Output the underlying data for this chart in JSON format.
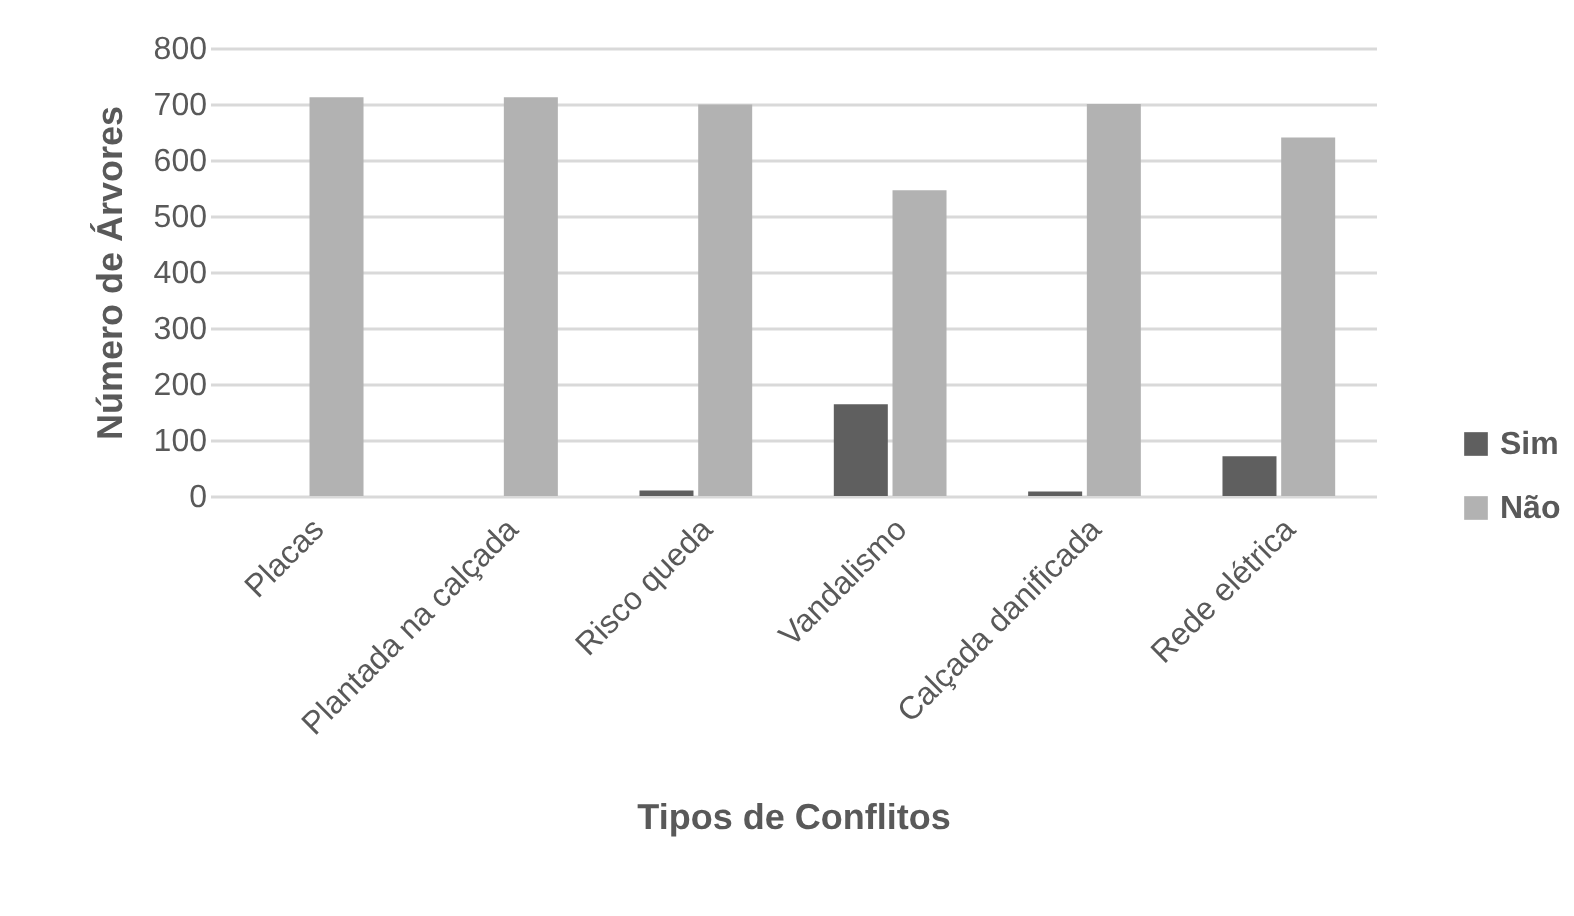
{
  "chart_data": {
    "type": "bar",
    "xlabel": "Tipos de Conflitos",
    "ylabel": "Número de Árvores",
    "categories": [
      "Placas",
      "Plantada na calçada",
      "Risco queda",
      "Vandalismo",
      "Calçada danificada",
      "Rede elétrica"
    ],
    "series": [
      {
        "name": "Sim",
        "color": "#5f5f5f",
        "values": [
          0,
          0,
          10,
          164,
          8,
          71
        ]
      },
      {
        "name": "Não",
        "color": "#b2b2b2",
        "values": [
          712,
          712,
          699,
          546,
          700,
          640
        ]
      }
    ],
    "ylim": [
      0,
      800
    ],
    "yticks": [
      0,
      100,
      200,
      300,
      400,
      500,
      600,
      700,
      800
    ],
    "grid": "y",
    "legend": "right"
  }
}
